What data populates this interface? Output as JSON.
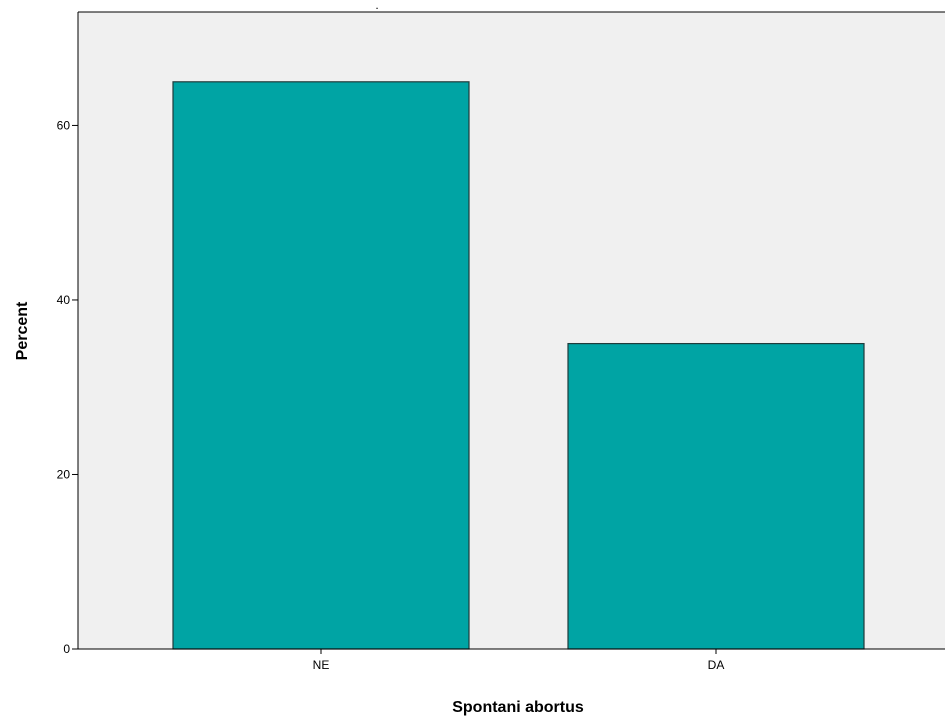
{
  "chart_data": {
    "type": "bar",
    "title": ".",
    "xlabel": "Spontani abortus",
    "ylabel": "Percent",
    "categories": [
      "NE",
      "DA"
    ],
    "values": [
      65,
      35
    ],
    "ylim": [
      0,
      73
    ],
    "yticks": [
      0,
      20,
      40,
      60
    ],
    "grid": false,
    "colors": {
      "bar_fill": "#00A4A4",
      "bar_stroke": "#1F3B3B",
      "plot_background": "#F0F0F0"
    }
  }
}
